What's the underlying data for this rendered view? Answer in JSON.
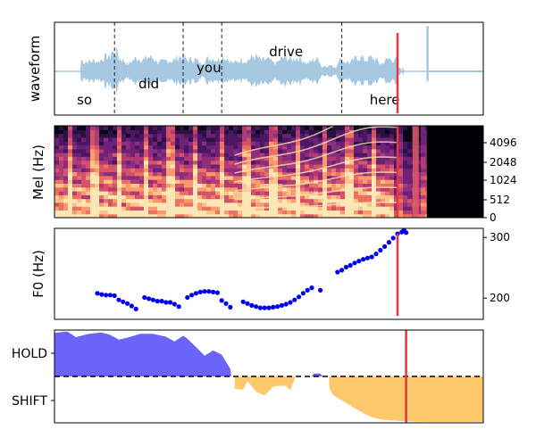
{
  "chart_data": [
    {
      "panel": "waveform",
      "type": "area",
      "ylabel": "waveform",
      "words": [
        {
          "text": "so",
          "t": 0.07
        },
        {
          "text": "did",
          "t": 0.22
        },
        {
          "text": "you",
          "t": 0.36
        },
        {
          "text": "drive",
          "t": 0.54
        },
        {
          "text": "here",
          "t": 0.77
        }
      ],
      "word_boundaries": [
        0.14,
        0.3,
        0.39,
        0.67
      ],
      "current_time": 0.8,
      "spike_time": 0.87,
      "color": "#a6c8e0",
      "marker_color": "#e8363a"
    },
    {
      "panel": "spectrogram",
      "type": "heatmap",
      "ylabel": "Mel (Hz)",
      "y_ticks": [
        "0",
        "512",
        "1024",
        "2048",
        "4096"
      ],
      "current_time": 0.8,
      "audio_end_time": 0.86,
      "marker_color": "#e8363a"
    },
    {
      "panel": "pitch",
      "type": "scatter",
      "ylabel": "F0 (Hz)",
      "y_ticks": [
        "200",
        "300"
      ],
      "ylim": [
        165,
        315
      ],
      "point_color": "#0000ee",
      "current_time": 0.8,
      "marker_color": "#e8363a",
      "points": [
        [
          0.1,
          208
        ],
        [
          0.11,
          206
        ],
        [
          0.12,
          205
        ],
        [
          0.13,
          205
        ],
        [
          0.14,
          204
        ],
        [
          0.15,
          197
        ],
        [
          0.16,
          194
        ],
        [
          0.17,
          191
        ],
        [
          0.18,
          187
        ],
        [
          0.19,
          182
        ],
        [
          0.21,
          201
        ],
        [
          0.22,
          199
        ],
        [
          0.23,
          197
        ],
        [
          0.24,
          195
        ],
        [
          0.25,
          195
        ],
        [
          0.26,
          193
        ],
        [
          0.27,
          193
        ],
        [
          0.28,
          190
        ],
        [
          0.29,
          186
        ],
        [
          0.31,
          201
        ],
        [
          0.32,
          205
        ],
        [
          0.33,
          208
        ],
        [
          0.34,
          210
        ],
        [
          0.35,
          211
        ],
        [
          0.36,
          211
        ],
        [
          0.37,
          210
        ],
        [
          0.38,
          209
        ],
        [
          0.39,
          196
        ],
        [
          0.4,
          191
        ],
        [
          0.41,
          185
        ],
        [
          0.44,
          194
        ],
        [
          0.45,
          191
        ],
        [
          0.46,
          188
        ],
        [
          0.47,
          186
        ],
        [
          0.48,
          184
        ],
        [
          0.49,
          184
        ],
        [
          0.5,
          184
        ],
        [
          0.51,
          185
        ],
        [
          0.52,
          186
        ],
        [
          0.53,
          188
        ],
        [
          0.54,
          190
        ],
        [
          0.55,
          193
        ],
        [
          0.56,
          197
        ],
        [
          0.57,
          202
        ],
        [
          0.58,
          208
        ],
        [
          0.59,
          213
        ],
        [
          0.6,
          217
        ],
        [
          0.62,
          213
        ],
        [
          0.66,
          243
        ],
        [
          0.67,
          246
        ],
        [
          0.68,
          251
        ],
        [
          0.69,
          254
        ],
        [
          0.7,
          258
        ],
        [
          0.71,
          261
        ],
        [
          0.72,
          264
        ],
        [
          0.73,
          266
        ],
        [
          0.74,
          268
        ],
        [
          0.75,
          273
        ],
        [
          0.76,
          279
        ],
        [
          0.77,
          285
        ],
        [
          0.78,
          292
        ],
        [
          0.79,
          299
        ],
        [
          0.8,
          306
        ],
        [
          0.81,
          309
        ],
        [
          0.815,
          312
        ],
        [
          0.82,
          308
        ]
      ]
    },
    {
      "panel": "turn-taking",
      "type": "area",
      "y_ticks": [
        "HOLD",
        "SHIFT"
      ],
      "hold_color": "#6a64fb",
      "shift_color": "#fec96d",
      "current_time": 0.82,
      "marker_color": "#e8363a",
      "hold": [
        [
          0.0,
          0.92
        ],
        [
          0.03,
          0.95
        ],
        [
          0.05,
          0.83
        ],
        [
          0.08,
          0.9
        ],
        [
          0.11,
          0.93
        ],
        [
          0.13,
          0.88
        ],
        [
          0.15,
          0.78
        ],
        [
          0.17,
          0.82
        ],
        [
          0.2,
          0.9
        ],
        [
          0.23,
          0.9
        ],
        [
          0.26,
          0.84
        ],
        [
          0.28,
          0.74
        ],
        [
          0.3,
          0.86
        ],
        [
          0.31,
          0.8
        ],
        [
          0.33,
          0.62
        ],
        [
          0.35,
          0.44
        ],
        [
          0.37,
          0.55
        ],
        [
          0.39,
          0.46
        ],
        [
          0.41,
          0.16
        ],
        [
          0.412,
          0.0
        ]
      ],
      "shift": [
        [
          0.42,
          0.0
        ],
        [
          0.421,
          -0.27
        ],
        [
          0.44,
          -0.28
        ],
        [
          0.45,
          -0.1
        ],
        [
          0.47,
          -0.32
        ],
        [
          0.49,
          -0.4
        ],
        [
          0.51,
          -0.22
        ],
        [
          0.52,
          -0.2
        ],
        [
          0.54,
          -0.2
        ],
        [
          0.55,
          -0.3
        ],
        [
          0.56,
          -0.05
        ],
        [
          0.561,
          0.0
        ]
      ],
      "small_hold": [
        [
          0.6,
          0.0
        ],
        [
          0.605,
          0.06
        ],
        [
          0.62,
          0.06
        ],
        [
          0.625,
          0.0
        ]
      ],
      "shift_end": [
        [
          0.64,
          0.0
        ],
        [
          0.641,
          -0.25
        ],
        [
          0.65,
          -0.4
        ],
        [
          0.68,
          -0.56
        ],
        [
          0.7,
          -0.67
        ],
        [
          0.72,
          -0.78
        ],
        [
          0.74,
          -0.86
        ],
        [
          0.76,
          -0.91
        ],
        [
          0.8,
          -0.94
        ],
        [
          0.85,
          -0.96
        ],
        [
          0.9,
          -0.96
        ],
        [
          1.0,
          -0.96
        ]
      ]
    }
  ]
}
